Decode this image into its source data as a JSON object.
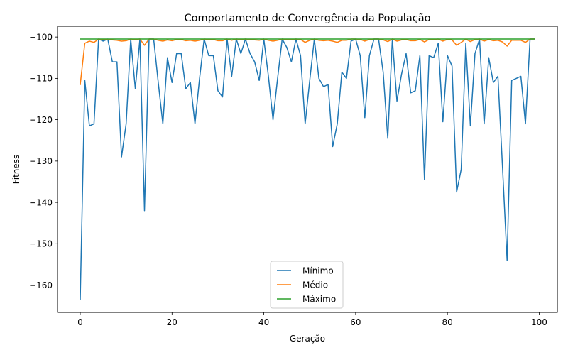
{
  "chart_data": {
    "type": "line",
    "title": "Comportamento de Convergência da População",
    "xlabel": "Geração",
    "ylabel": "Fitness",
    "xlim": [
      -4.95,
      103.95
    ],
    "ylim": [
      -166.6,
      -97.4
    ],
    "xticks": [
      0,
      20,
      40,
      60,
      80,
      100
    ],
    "yticks": [
      -160,
      -150,
      -140,
      -130,
      -120,
      -110,
      -100
    ],
    "grid": false,
    "legend": "lower center",
    "x": [
      0,
      1,
      2,
      3,
      4,
      5,
      6,
      7,
      8,
      9,
      10,
      11,
      12,
      13,
      14,
      15,
      16,
      17,
      18,
      19,
      20,
      21,
      22,
      23,
      24,
      25,
      26,
      27,
      28,
      29,
      30,
      31,
      32,
      33,
      34,
      35,
      36,
      37,
      38,
      39,
      40,
      41,
      42,
      43,
      44,
      45,
      46,
      47,
      48,
      49,
      50,
      51,
      52,
      53,
      54,
      55,
      56,
      57,
      58,
      59,
      60,
      61,
      62,
      63,
      64,
      65,
      66,
      67,
      68,
      69,
      70,
      71,
      72,
      73,
      74,
      75,
      76,
      77,
      78,
      79,
      80,
      81,
      82,
      83,
      84,
      85,
      86,
      87,
      88,
      89,
      90,
      91,
      92,
      93,
      94,
      95,
      96,
      97,
      98,
      99
    ],
    "series": [
      {
        "name": "Mínimo",
        "color": "#1f77b4",
        "values": [
          -163.5,
          -110.5,
          -121.5,
          -121,
          -100.5,
          -101,
          -100.5,
          -106,
          -106,
          -129,
          -121,
          -100.5,
          -112.5,
          -100.5,
          -142,
          -100.5,
          -100.5,
          -111,
          -121,
          -105,
          -111,
          -104,
          -104,
          -112.5,
          -111,
          -121,
          -110,
          -100.5,
          -104.5,
          -104.5,
          -113,
          -114.5,
          -100.5,
          -109.5,
          -100.5,
          -104,
          -100.5,
          -104,
          -106,
          -110.5,
          -100.5,
          -109.5,
          -120,
          -110,
          -100.5,
          -102.5,
          -106,
          -100.5,
          -104.5,
          -121,
          -110.5,
          -100.5,
          -110,
          -112,
          -111.5,
          -126.5,
          -121,
          -108.5,
          -110,
          -101,
          -100.5,
          -104.5,
          -119.5,
          -104.5,
          -100.5,
          -100.5,
          -108.5,
          -124.5,
          -100.5,
          -115.5,
          -109,
          -104,
          -113.5,
          -113,
          -104.5,
          -134.5,
          -104.5,
          -105,
          -101.5,
          -120.5,
          -104.5,
          -107,
          -137.5,
          -132,
          -101.5,
          -121.5,
          -104,
          -100.5,
          -121,
          -105,
          -111,
          -109.5,
          -131.5,
          -154,
          -110.5,
          -110,
          -109.5,
          -121,
          -100.5,
          -100.5
        ]
      },
      {
        "name": "Médio",
        "color": "#ff7f0e",
        "values": [
          -111.5,
          -101.5,
          -101,
          -101.3,
          -100.5,
          -100.6,
          -100.6,
          -100.7,
          -100.8,
          -101,
          -100.9,
          -100.5,
          -100.6,
          -100.5,
          -102,
          -100.5,
          -100.5,
          -100.8,
          -101,
          -100.7,
          -100.9,
          -100.6,
          -100.6,
          -100.9,
          -100.8,
          -101,
          -100.8,
          -100.5,
          -100.6,
          -100.6,
          -100.9,
          -100.9,
          -100.5,
          -100.8,
          -100.5,
          -100.6,
          -100.5,
          -100.6,
          -100.7,
          -100.8,
          -100.5,
          -100.8,
          -101,
          -100.8,
          -100.5,
          -100.6,
          -100.7,
          -100.5,
          -100.6,
          -101.3,
          -100.8,
          -100.5,
          -100.8,
          -100.9,
          -100.8,
          -101,
          -101.3,
          -100.8,
          -100.8,
          -100.5,
          -100.5,
          -100.6,
          -101,
          -100.6,
          -100.5,
          -100.5,
          -100.7,
          -101.1,
          -100.5,
          -101,
          -100.7,
          -100.6,
          -100.9,
          -100.9,
          -100.6,
          -101.2,
          -100.6,
          -100.6,
          -100.5,
          -101,
          -100.6,
          -100.7,
          -102,
          -101.3,
          -100.5,
          -101.1,
          -100.6,
          -100.5,
          -101,
          -100.6,
          -100.9,
          -100.8,
          -101.2,
          -102.2,
          -100.8,
          -100.8,
          -100.8,
          -101.3,
          -100.5,
          -100.5
        ]
      },
      {
        "name": "Máximo",
        "color": "#2ca02c",
        "values": [
          -100.5,
          -100.5,
          -100.5,
          -100.5,
          -100.5,
          -100.5,
          -100.5,
          -100.5,
          -100.5,
          -100.5,
          -100.5,
          -100.5,
          -100.5,
          -100.5,
          -100.5,
          -100.5,
          -100.5,
          -100.5,
          -100.5,
          -100.5,
          -100.5,
          -100.5,
          -100.5,
          -100.5,
          -100.5,
          -100.5,
          -100.5,
          -100.5,
          -100.5,
          -100.5,
          -100.5,
          -100.5,
          -100.5,
          -100.5,
          -100.5,
          -100.5,
          -100.5,
          -100.5,
          -100.5,
          -100.5,
          -100.5,
          -100.5,
          -100.5,
          -100.5,
          -100.5,
          -100.5,
          -100.5,
          -100.5,
          -100.5,
          -100.5,
          -100.5,
          -100.5,
          -100.5,
          -100.5,
          -100.5,
          -100.5,
          -100.5,
          -100.5,
          -100.5,
          -100.5,
          -100.5,
          -100.5,
          -100.5,
          -100.5,
          -100.5,
          -100.5,
          -100.5,
          -100.5,
          -100.5,
          -100.5,
          -100.5,
          -100.5,
          -100.5,
          -100.5,
          -100.5,
          -100.5,
          -100.5,
          -100.5,
          -100.5,
          -100.5,
          -100.5,
          -100.5,
          -100.5,
          -100.5,
          -100.5,
          -100.5,
          -100.5,
          -100.5,
          -100.5,
          -100.5,
          -100.5,
          -100.5,
          -100.5,
          -100.5,
          -100.5,
          -100.5,
          -100.5,
          -100.5,
          -100.5,
          -100.5
        ]
      }
    ]
  }
}
